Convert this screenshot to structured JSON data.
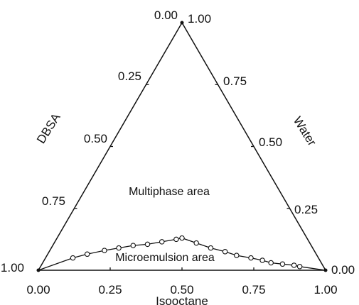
{
  "chart_data": {
    "type": "scatter",
    "subtype": "ternary",
    "title": "",
    "axes": {
      "bottom": {
        "label": "Isooctane",
        "ticks": [
          "0.00",
          "0.25",
          "0.50",
          "0.75",
          "1.00"
        ]
      },
      "left": {
        "label": "DBSA",
        "ticks": [
          "1.00",
          "0.75",
          "0.50",
          "0.25",
          "0.00"
        ]
      },
      "right": {
        "label": "Water",
        "ticks": [
          "1.00",
          "0.75",
          "0.50",
          "0.25",
          "0.00"
        ]
      }
    },
    "annotations": [
      "Multiphase area",
      "Microemulsion area"
    ],
    "boundary_curve": {
      "marker": "open-circle",
      "points": [
        {
          "x": 0.12,
          "y": 0.05
        },
        {
          "x": 0.17,
          "y": 0.065
        },
        {
          "x": 0.23,
          "y": 0.08
        },
        {
          "x": 0.28,
          "y": 0.09
        },
        {
          "x": 0.33,
          "y": 0.1
        },
        {
          "x": 0.38,
          "y": 0.105
        },
        {
          "x": 0.43,
          "y": 0.115
        },
        {
          "x": 0.48,
          "y": 0.125
        },
        {
          "x": 0.5,
          "y": 0.13
        },
        {
          "x": 0.55,
          "y": 0.11
        },
        {
          "x": 0.6,
          "y": 0.09
        },
        {
          "x": 0.65,
          "y": 0.075
        },
        {
          "x": 0.69,
          "y": 0.06
        },
        {
          "x": 0.74,
          "y": 0.05
        },
        {
          "x": 0.78,
          "y": 0.04
        },
        {
          "x": 0.81,
          "y": 0.03
        },
        {
          "x": 0.85,
          "y": 0.025
        },
        {
          "x": 0.89,
          "y": 0.02
        },
        {
          "x": 0.91,
          "y": 0.015
        }
      ]
    },
    "grid": false
  }
}
